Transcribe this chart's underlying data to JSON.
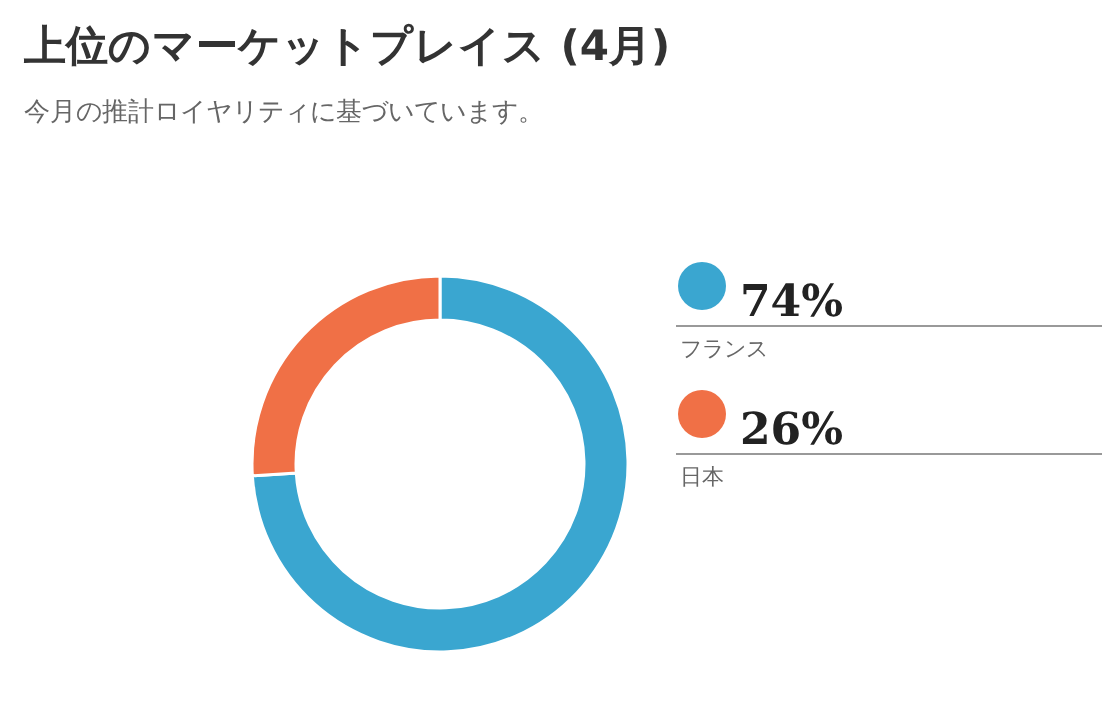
{
  "chart_data": {
    "type": "donut",
    "title": "上位のマーケットプレイス (4月)",
    "subtitle": "今月の推計ロイヤリティに基づいています。",
    "categories": [
      "フランス",
      "日本"
    ],
    "values": [
      74,
      26
    ],
    "colors": [
      "#3aa6d0",
      "#f07046"
    ],
    "value_labels": [
      "74%",
      "26%"
    ],
    "legend": "right"
  }
}
